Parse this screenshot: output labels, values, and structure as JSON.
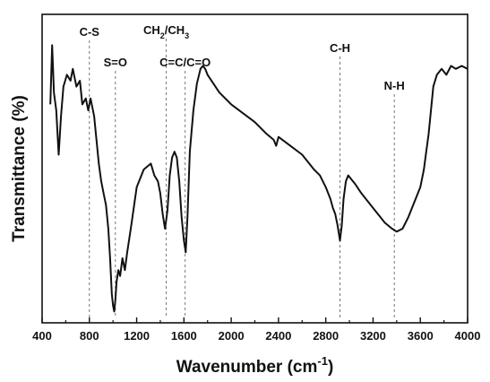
{
  "chart_data": {
    "type": "line",
    "title": "",
    "xlabel": "Wavenumber (cm",
    "xlabel_sup": "-1",
    "xlabel_end": ")",
    "ylabel": "Transmittance (%)",
    "xlim": [
      400,
      4000
    ],
    "xticks": [
      400,
      800,
      1200,
      1600,
      2000,
      2400,
      2800,
      3200,
      3600,
      4000
    ],
    "yticks_visible": false,
    "grid": false,
    "line_color": "#111111",
    "series": [
      {
        "x": [
          470,
          485,
          500,
          520,
          540,
          560,
          580,
          610,
          640,
          660,
          690,
          720,
          740,
          770,
          790,
          810,
          840,
          860,
          880,
          900,
          920,
          940,
          960,
          975,
          990,
          1000,
          1010,
          1020,
          1030,
          1045,
          1060,
          1080,
          1100,
          1120,
          1150,
          1200,
          1260,
          1320,
          1350,
          1380,
          1400,
          1420,
          1440,
          1460,
          1480,
          1500,
          1520,
          1540,
          1560,
          1580,
          1600,
          1615,
          1630,
          1650,
          1680,
          1710,
          1740,
          1760,
          1780,
          1800,
          1850,
          1900,
          2000,
          2100,
          2200,
          2300,
          2360,
          2380,
          2400,
          2500,
          2600,
          2700,
          2750,
          2800,
          2840,
          2860,
          2880,
          2900,
          2920,
          2935,
          2950,
          2970,
          2990,
          3050,
          3100,
          3200,
          3300,
          3360,
          3400,
          3450,
          3500,
          3560,
          3600,
          3630,
          3650,
          3670,
          3690,
          3710,
          3740,
          3780,
          3820,
          3860,
          3900,
          3950,
          4000
        ],
        "y": [
          72,
          92,
          76,
          70,
          55,
          68,
          78,
          82,
          80,
          84,
          78,
          80,
          72,
          74,
          70,
          74,
          68,
          60,
          52,
          46,
          42,
          38,
          30,
          20,
          8,
          4,
          2,
          6,
          12,
          16,
          14,
          20,
          16,
          22,
          30,
          44,
          50,
          52,
          48,
          46,
          42,
          35,
          30,
          36,
          48,
          54,
          56,
          54,
          46,
          34,
          26,
          22,
          34,
          56,
          70,
          79,
          84,
          85,
          84,
          82,
          79,
          76,
          72,
          69,
          66,
          62,
          60,
          58,
          61,
          58,
          55,
          50,
          48,
          44,
          40,
          37,
          35,
          31,
          26,
          31,
          40,
          46,
          48,
          45,
          42,
          37,
          32,
          30,
          29,
          30,
          34,
          40,
          44,
          50,
          56,
          62,
          70,
          78,
          82,
          84,
          82,
          85,
          84,
          85,
          84
        ]
      }
    ],
    "annotations": [
      {
        "label": "C-S",
        "x": 800
      },
      {
        "label": "S=O",
        "x": 1020
      },
      {
        "label": "CH",
        "sub1": "2",
        "mid": "/CH",
        "sub2": "3",
        "x": 1450
      },
      {
        "label": "C=C/C=O",
        "x": 1610
      },
      {
        "label": "C-H",
        "x": 2920
      },
      {
        "label": "N-H",
        "x": 3380
      }
    ]
  }
}
